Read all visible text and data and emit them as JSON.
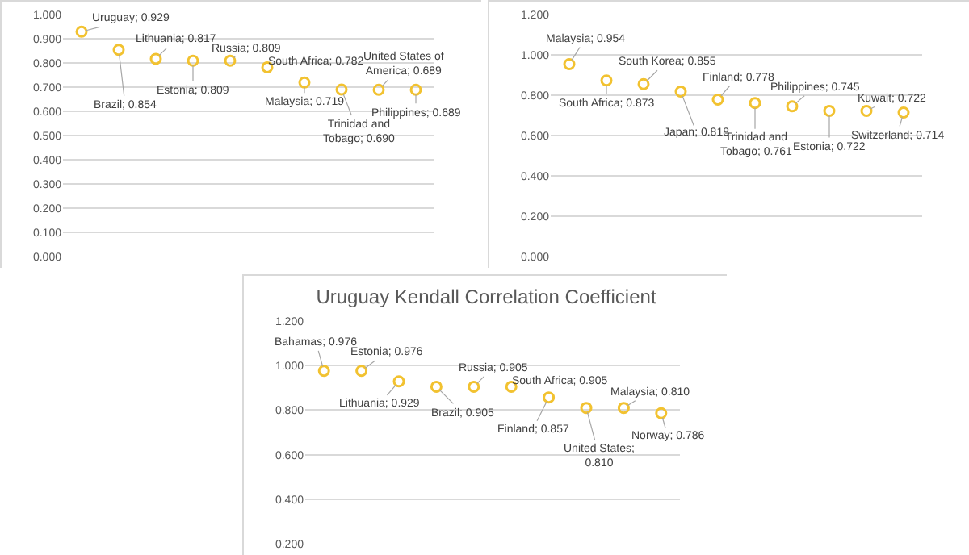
{
  "chart_data": [
    {
      "type": "scatter",
      "categories": [
        null,
        null,
        null,
        null,
        null,
        null,
        null,
        null,
        null,
        null
      ],
      "series": [
        {
          "color": "#f2c230",
          "values": [
            0.929,
            0.854,
            0.817,
            0.809,
            0.809,
            0.782,
            0.719,
            0.69,
            0.689,
            0.689
          ],
          "value_labels": [
            "Uruguay; 0.929",
            "Brazil; 0.854",
            "Lithuania; 0.817",
            "Estonia; 0.809",
            "Russia; 0.809",
            "South Africa; 0.782",
            "Malaysia; 0.719",
            "Trinidad and\nTobago; 0.690",
            "United States of\nAmerica; 0.689",
            "Philippines; 0.689"
          ]
        }
      ],
      "ylim": [
        0,
        1
      ],
      "yticks": [
        {
          "value": 0,
          "label": "0.000"
        },
        {
          "value": 0.1,
          "label": "0.100"
        },
        {
          "value": 0.2,
          "label": "0.200"
        },
        {
          "value": 0.3,
          "label": "0.300"
        },
        {
          "value": 0.4,
          "label": "0.400"
        },
        {
          "value": 0.5,
          "label": "0.500"
        },
        {
          "value": 0.6,
          "label": "0.600"
        },
        {
          "value": 0.7,
          "label": "0.700"
        },
        {
          "value": 0.8,
          "label": "0.800"
        },
        {
          "value": 0.9,
          "label": "0.900"
        },
        {
          "value": 1,
          "label": "1.000"
        }
      ],
      "grid": "y",
      "marker": "circle",
      "tick_labels": "y"
    },
    {
      "type": "scatter",
      "categories": [
        null,
        null,
        null,
        null,
        null,
        null,
        null,
        null,
        null,
        null
      ],
      "series": [
        {
          "color": "#f2c230",
          "values": [
            0.954,
            0.873,
            0.855,
            0.818,
            0.778,
            0.761,
            0.745,
            0.722,
            0.722,
            0.714
          ],
          "value_labels": [
            "Malaysia; 0.954",
            "South Africa; 0.873",
            "South Korea; 0.855",
            "Japan; 0.818",
            "Finland; 0.778",
            "Trinidad and\nTobago; 0.761",
            "Philippines; 0.745",
            "Estonia; 0.722",
            "Kuwait; 0.722",
            "Switzerland; 0.714"
          ]
        }
      ],
      "ylim": [
        0,
        1.2
      ],
      "yticks": [
        {
          "value": 0,
          "label": "0.000"
        },
        {
          "value": 0.2,
          "label": "0.200"
        },
        {
          "value": 0.4,
          "label": "0.400"
        },
        {
          "value": 0.6,
          "label": "0.600"
        },
        {
          "value": 0.8,
          "label": "0.800"
        },
        {
          "value": 1,
          "label": "1.000"
        },
        {
          "value": 1.2,
          "label": "1.200"
        }
      ],
      "grid": "y",
      "marker": "circle",
      "tick_labels": "y"
    },
    {
      "type": "scatter",
      "title": "Uruguay Kendall Correlation Coefficient",
      "categories": [
        null,
        null,
        null,
        null,
        null,
        null,
        null,
        null,
        null,
        null
      ],
      "series": [
        {
          "color": "#f2c230",
          "values": [
            0.976,
            0.976,
            0.929,
            0.905,
            0.905,
            0.905,
            0.857,
            0.81,
            0.81,
            0.786
          ],
          "value_labels": [
            "Bahamas; 0.976",
            "Estonia; 0.976",
            "Lithuania; 0.929",
            "Brazil; 0.905",
            "Russia; 0.905",
            "South Africa; 0.905",
            "Finland; 0.857",
            "United States;\n0.810",
            "Malaysia; 0.810",
            "Norway; 0.786"
          ]
        }
      ],
      "ylim": [
        0.2,
        1.2
      ],
      "yticks": [
        {
          "value": 0.2,
          "label": "0.200"
        },
        {
          "value": 0.4,
          "label": "0.400"
        },
        {
          "value": 0.6,
          "label": "0.600"
        },
        {
          "value": 0.8,
          "label": "0.800"
        },
        {
          "value": 1,
          "label": "1.000"
        },
        {
          "value": 1.2,
          "label": "1.200"
        }
      ],
      "grid": "y",
      "marker": "circle",
      "tick_labels": "y"
    }
  ]
}
